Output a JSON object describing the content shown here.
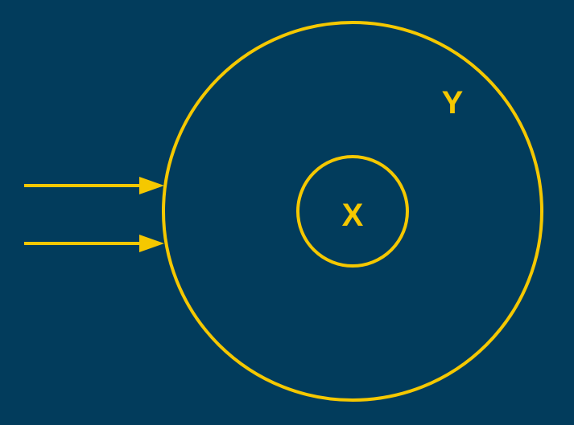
{
  "colors": {
    "background": "#023C5C",
    "stroke": "#F5C800"
  },
  "diagram": {
    "outer_circle_label": "Y",
    "inner_circle_label": "X",
    "arrow_count": 2
  }
}
